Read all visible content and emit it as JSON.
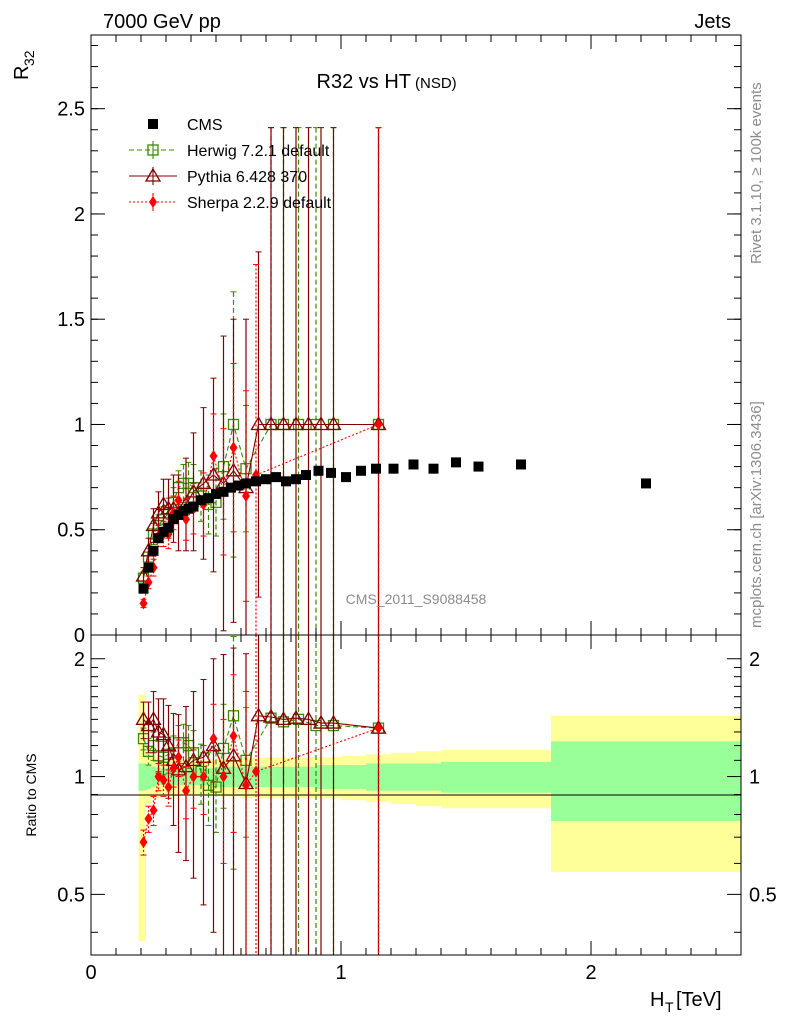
{
  "header": {
    "left": "7000 GeV pp",
    "right": "Jets"
  },
  "side_text": {
    "rivet": "Rivet 3.1.10, ≥ 100k events",
    "mcplots": "mcplots.cern.ch [arXiv:1306.3436]"
  },
  "colors": {
    "cms": "#000000",
    "herwig": "#3a8a00",
    "pythia": "#800000",
    "sherpa": "#ff0000",
    "band_inner": "#99ff99",
    "band_outer": "#ffff99"
  },
  "chart_data": [
    {
      "type": "scatter",
      "title": "R32 vs HT",
      "title_suffix": "(NSD)",
      "ylabel": "R",
      "ylabel_sub": "32",
      "xlabel": "",
      "xlim": [
        0,
        2.6
      ],
      "ylim": [
        0,
        2.85
      ],
      "yticks": [
        "0",
        "0.5",
        "1",
        "1.5",
        "2",
        "2.5"
      ],
      "watermark": "CMS_2011_S9088458",
      "legend_position": "top-left",
      "series": [
        {
          "name": "CMS",
          "marker": "square",
          "x": [
            0.21,
            0.23,
            0.25,
            0.27,
            0.29,
            0.31,
            0.33,
            0.35,
            0.37,
            0.39,
            0.41,
            0.44,
            0.47,
            0.5,
            0.53,
            0.56,
            0.59,
            0.62,
            0.66,
            0.7,
            0.74,
            0.78,
            0.82,
            0.86,
            0.91,
            0.96,
            1.02,
            1.08,
            1.14,
            1.21,
            1.29,
            1.37,
            1.46,
            1.55,
            1.72,
            2.22
          ],
          "y": [
            0.22,
            0.32,
            0.4,
            0.46,
            0.49,
            0.51,
            0.55,
            0.57,
            0.59,
            0.6,
            0.61,
            0.64,
            0.65,
            0.67,
            0.68,
            0.7,
            0.71,
            0.72,
            0.73,
            0.74,
            0.75,
            0.73,
            0.74,
            0.76,
            0.78,
            0.77,
            0.75,
            0.78,
            0.79,
            0.79,
            0.81,
            0.79,
            0.82,
            0.8,
            0.81,
            0.72
          ]
        },
        {
          "name": "Herwig 7.2.1 default",
          "marker": "open-square",
          "line": "dashed",
          "x": [
            0.21,
            0.23,
            0.25,
            0.27,
            0.29,
            0.31,
            0.33,
            0.35,
            0.37,
            0.39,
            0.41,
            0.44,
            0.47,
            0.5,
            0.53,
            0.57,
            0.62,
            0.72,
            0.77,
            0.83,
            0.9,
            0.97,
            1.15
          ],
          "y": [
            0.27,
            0.37,
            0.48,
            0.52,
            0.55,
            0.58,
            0.63,
            0.7,
            0.72,
            0.72,
            0.7,
            0.66,
            0.62,
            0.63,
            0.8,
            1.0,
            0.79,
            1.0,
            1.0,
            1.0,
            1.0,
            1.0,
            1.0
          ],
          "err": [
            0.03,
            0.04,
            0.05,
            0.05,
            0.06,
            0.07,
            0.07,
            0.08,
            0.09,
            0.1,
            0.11,
            0.12,
            0.14,
            0.16,
            0.25,
            0.63,
            0.3,
            1.41,
            1.41,
            1.41,
            1.41,
            1.41,
            1.41
          ]
        },
        {
          "name": "Pythia 6.428 370",
          "marker": "open-triangle",
          "line": "solid",
          "x": [
            0.21,
            0.23,
            0.25,
            0.27,
            0.29,
            0.31,
            0.33,
            0.35,
            0.38,
            0.41,
            0.45,
            0.49,
            0.53,
            0.57,
            0.62,
            0.67,
            0.72,
            0.77,
            0.82,
            0.87,
            0.92,
            0.97,
            1.15
          ],
          "y": [
            0.28,
            0.4,
            0.52,
            0.58,
            0.62,
            0.6,
            0.6,
            0.58,
            0.62,
            0.68,
            0.72,
            0.76,
            0.72,
            0.78,
            0.7,
            1.0,
            1.0,
            1.0,
            1.0,
            1.0,
            1.0,
            1.0,
            1.0
          ],
          "err": [
            0.04,
            0.06,
            0.08,
            0.1,
            0.12,
            0.14,
            0.16,
            0.18,
            0.22,
            0.28,
            0.36,
            0.46,
            0.7,
            0.72,
            0.8,
            0.82,
            1.41,
            1.41,
            1.41,
            1.41,
            1.41,
            1.41,
            1.41
          ]
        },
        {
          "name": "Sherpa 2.2.9 default",
          "marker": "diamond",
          "line": "dotted",
          "x": [
            0.21,
            0.23,
            0.25,
            0.27,
            0.29,
            0.31,
            0.33,
            0.35,
            0.38,
            0.41,
            0.45,
            0.49,
            0.53,
            0.57,
            0.62,
            0.66,
            1.15
          ],
          "y": [
            0.15,
            0.25,
            0.32,
            0.47,
            0.48,
            0.48,
            0.58,
            0.64,
            0.55,
            0.6,
            0.62,
            0.85,
            0.68,
            0.89,
            0.66,
            0.76,
            1.0
          ],
          "err": [
            0.02,
            0.03,
            0.04,
            0.05,
            0.06,
            0.07,
            0.08,
            0.09,
            0.1,
            0.12,
            0.15,
            0.2,
            0.3,
            0.4,
            0.5,
            1.0,
            1.41
          ]
        }
      ]
    },
    {
      "type": "scatter",
      "title": "",
      "ylabel": "Ratio to CMS",
      "xlabel": "H_T [TeV]",
      "xlabel_main": "H",
      "xlabel_sub": "T",
      "xlabel_unit": "[TeV]",
      "xlim": [
        0,
        2.6
      ],
      "ylim": [
        0.35,
        2.3
      ],
      "yticks": [
        "0.5",
        "1",
        "2"
      ],
      "xticks": [
        "0",
        "1",
        "2"
      ],
      "band_edges": [
        0.19,
        0.22,
        0.24,
        0.26,
        0.28,
        0.32,
        0.36,
        0.4,
        0.45,
        0.5,
        0.6,
        0.7,
        0.8,
        0.9,
        1.0,
        1.1,
        1.2,
        1.3,
        1.4,
        1.5,
        1.6,
        1.7,
        1.84,
        2.6
      ],
      "band_inner": [
        0.08,
        0.07,
        0.06,
        0.05,
        0.05,
        0.05,
        0.05,
        0.05,
        0.05,
        0.06,
        0.06,
        0.06,
        0.06,
        0.07,
        0.07,
        0.08,
        0.08,
        0.08,
        0.09,
        0.09,
        0.09,
        0.09,
        0.23
      ],
      "band_outer": [
        0.62,
        0.15,
        0.12,
        0.12,
        0.11,
        0.11,
        0.1,
        0.1,
        0.1,
        0.11,
        0.12,
        0.12,
        0.12,
        0.12,
        0.13,
        0.14,
        0.15,
        0.16,
        0.17,
        0.17,
        0.17,
        0.17,
        0.43
      ],
      "series": [
        {
          "name": "Herwig 7.2.1 default",
          "x": [
            0.21,
            0.23,
            0.25,
            0.27,
            0.29,
            0.31,
            0.33,
            0.35,
            0.37,
            0.39,
            0.41,
            0.44,
            0.47,
            0.5,
            0.53,
            0.57,
            0.62,
            0.72,
            0.77,
            0.83,
            0.9,
            0.97,
            1.15
          ],
          "y": [
            1.25,
            1.16,
            1.2,
            1.13,
            1.12,
            1.14,
            1.15,
            1.22,
            1.22,
            1.2,
            1.15,
            1.03,
            0.95,
            0.94,
            1.18,
            1.43,
            1.1,
            1.41,
            1.38,
            1.4,
            1.35,
            1.35,
            1.33
          ],
          "err": [
            0.08,
            0.09,
            0.1,
            0.1,
            0.11,
            0.12,
            0.12,
            0.13,
            0.14,
            0.15,
            0.16,
            0.18,
            0.2,
            0.22,
            0.35,
            0.85,
            0.4,
            1.9,
            1.9,
            1.9,
            1.9,
            1.9,
            1.9
          ]
        },
        {
          "name": "Pythia 6.428 370",
          "x": [
            0.21,
            0.23,
            0.25,
            0.27,
            0.29,
            0.31,
            0.33,
            0.35,
            0.38,
            0.41,
            0.45,
            0.49,
            0.53,
            0.57,
            0.62,
            0.67,
            0.72,
            0.77,
            0.82,
            0.87,
            0.92,
            0.97,
            1.15
          ],
          "y": [
            1.4,
            1.35,
            1.4,
            1.3,
            1.28,
            1.2,
            1.1,
            1.04,
            1.06,
            1.1,
            1.12,
            1.2,
            1.05,
            1.13,
            0.96,
            1.43,
            1.42,
            1.4,
            1.41,
            1.4,
            1.37,
            1.37,
            1.33
          ],
          "err": [
            0.15,
            0.2,
            0.25,
            0.28,
            0.3,
            0.32,
            0.35,
            0.4,
            0.45,
            0.55,
            0.65,
            0.8,
            1.0,
            1.0,
            1.1,
            1.2,
            1.9,
            1.9,
            1.9,
            1.9,
            1.9,
            1.9,
            1.9
          ]
        },
        {
          "name": "Sherpa 2.2.9 default",
          "x": [
            0.21,
            0.23,
            0.25,
            0.27,
            0.29,
            0.31,
            0.33,
            0.35,
            0.38,
            0.41,
            0.45,
            0.49,
            0.53,
            0.57,
            0.62,
            0.66,
            1.15
          ],
          "y": [
            0.68,
            0.78,
            0.82,
            1.0,
            0.98,
            0.94,
            1.05,
            1.12,
            0.92,
            1.0,
            1.0,
            1.25,
            1.0,
            1.27,
            0.95,
            1.03,
            1.33
          ],
          "err": [
            0.05,
            0.06,
            0.07,
            0.08,
            0.09,
            0.1,
            0.11,
            0.12,
            0.14,
            0.17,
            0.2,
            0.28,
            0.4,
            0.55,
            0.7,
            1.3,
            1.9
          ]
        }
      ]
    }
  ]
}
